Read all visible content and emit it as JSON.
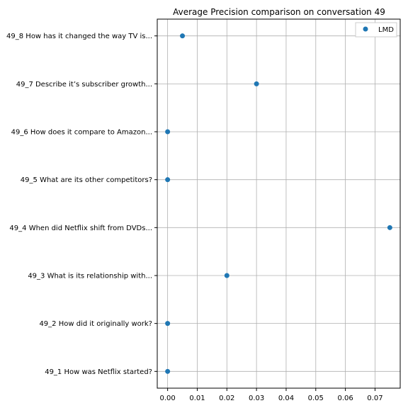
{
  "chart_data": {
    "type": "scatter",
    "title": "Average Precision comparison on conversation 49",
    "xlabel": "",
    "ylabel": "",
    "xlim": [
      -0.0035,
      0.0785
    ],
    "x_ticks": [
      0.0,
      0.01,
      0.02,
      0.03,
      0.04,
      0.05,
      0.06,
      0.07
    ],
    "x_tick_labels": [
      "0.00",
      "0.01",
      "0.02",
      "0.03",
      "0.04",
      "0.05",
      "0.06",
      "0.07"
    ],
    "categories": [
      "49_1 How was Netflix started?",
      "49_2 How did it originally work?",
      "49_3 What is its relationship with...",
      "49_4 When did Netflix shift from DVDs...",
      "49_5 What are its other competitors?",
      "49_6 How does it compare to Amazon...",
      "49_7 Describe it’s subscriber growth...",
      "49_8 How has it changed the way TV is..."
    ],
    "series": [
      {
        "name": "LMD",
        "color": "#1f77b4",
        "values": [
          0.0,
          0.0,
          0.02,
          0.075,
          0.0,
          0.0,
          0.03,
          0.005
        ]
      }
    ],
    "grid": true,
    "legend_position": "top-right"
  }
}
